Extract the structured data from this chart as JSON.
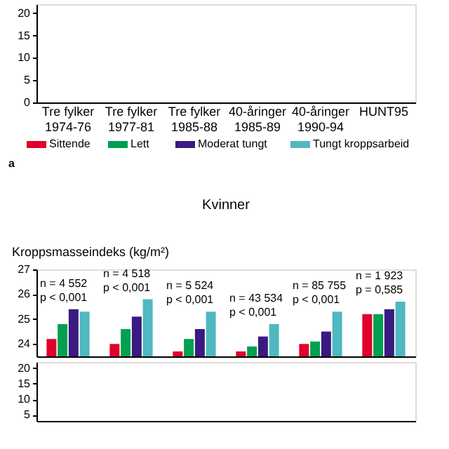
{
  "chart_data": [
    {
      "type": "bar",
      "categories": [
        "Tre fylker 1974-76",
        "Tre fylker 1977-81",
        "Tre fylker 1985-88",
        "40-åringer 1985-89",
        "40-åringer 1990-94",
        "HUNT95"
      ],
      "series": [
        {
          "name": "Sittende",
          "color": "#e0002a",
          "values": [
            null,
            null,
            null,
            null,
            null,
            null
          ]
        },
        {
          "name": "Lett",
          "color": "#00a050",
          "values": [
            null,
            null,
            null,
            null,
            null,
            null
          ]
        },
        {
          "name": "Moderat tungt",
          "color": "#3a1a80",
          "values": [
            null,
            null,
            null,
            null,
            null,
            null
          ]
        },
        {
          "name": "Tungt kroppsarbeid",
          "color": "#50b8c0",
          "values": [
            null,
            null,
            null,
            null,
            null,
            null
          ]
        }
      ],
      "ylim": [
        0,
        22
      ],
      "yticks": [
        0,
        5,
        10,
        15,
        20
      ],
      "legend": "bottom",
      "annotations": [
        "a"
      ]
    },
    {
      "type": "bar",
      "title": "Kvinner",
      "ylabel": "Kroppsmasseindeks (kg/m²)",
      "categories": [
        null,
        null,
        null,
        null,
        null,
        null
      ],
      "series": [
        {
          "color": "#e0002a",
          "values": [
            24.2,
            24.0,
            23.7,
            23.7,
            24.0,
            25.2
          ]
        },
        {
          "color": "#00a050",
          "values": [
            24.8,
            24.6,
            24.2,
            23.9,
            24.1,
            25.2
          ]
        },
        {
          "color": "#3a1a80",
          "values": [
            25.4,
            25.1,
            24.6,
            24.3,
            24.5,
            25.4
          ]
        },
        {
          "color": "#50b8c0",
          "values": [
            25.3,
            25.8,
            25.3,
            24.8,
            25.3,
            25.7
          ]
        }
      ],
      "ylim": [
        23.5,
        27
      ],
      "yticks": [
        24,
        25,
        26,
        27
      ],
      "tick_labels": "y",
      "annotations": [
        "n = 4 552\np < 0,001",
        "n = 4 518\np < 0,001",
        "n = 5 524\np < 0,001",
        "n = 43 534\np < 0,001",
        "n = 85 755\np < 0,001",
        "n = 1 923\np = 0,585"
      ]
    },
    {
      "type": "bar",
      "categories": [
        null,
        null,
        null,
        null,
        null,
        null
      ],
      "series": [
        {
          "color": "#e0002a",
          "values": [
            null,
            null,
            null,
            null,
            null,
            null
          ]
        },
        {
          "color": "#00a050",
          "values": [
            null,
            null,
            null,
            null,
            null,
            null
          ]
        },
        {
          "color": "#3a1a80",
          "values": [
            null,
            null,
            null,
            null,
            null,
            null
          ]
        },
        {
          "color": "#50b8c0",
          "values": [
            null,
            null,
            null,
            null,
            null,
            null
          ]
        }
      ],
      "ylim": [
        3,
        22
      ],
      "yticks": [
        5,
        10,
        15,
        20
      ],
      "tick_labels": "y"
    }
  ]
}
